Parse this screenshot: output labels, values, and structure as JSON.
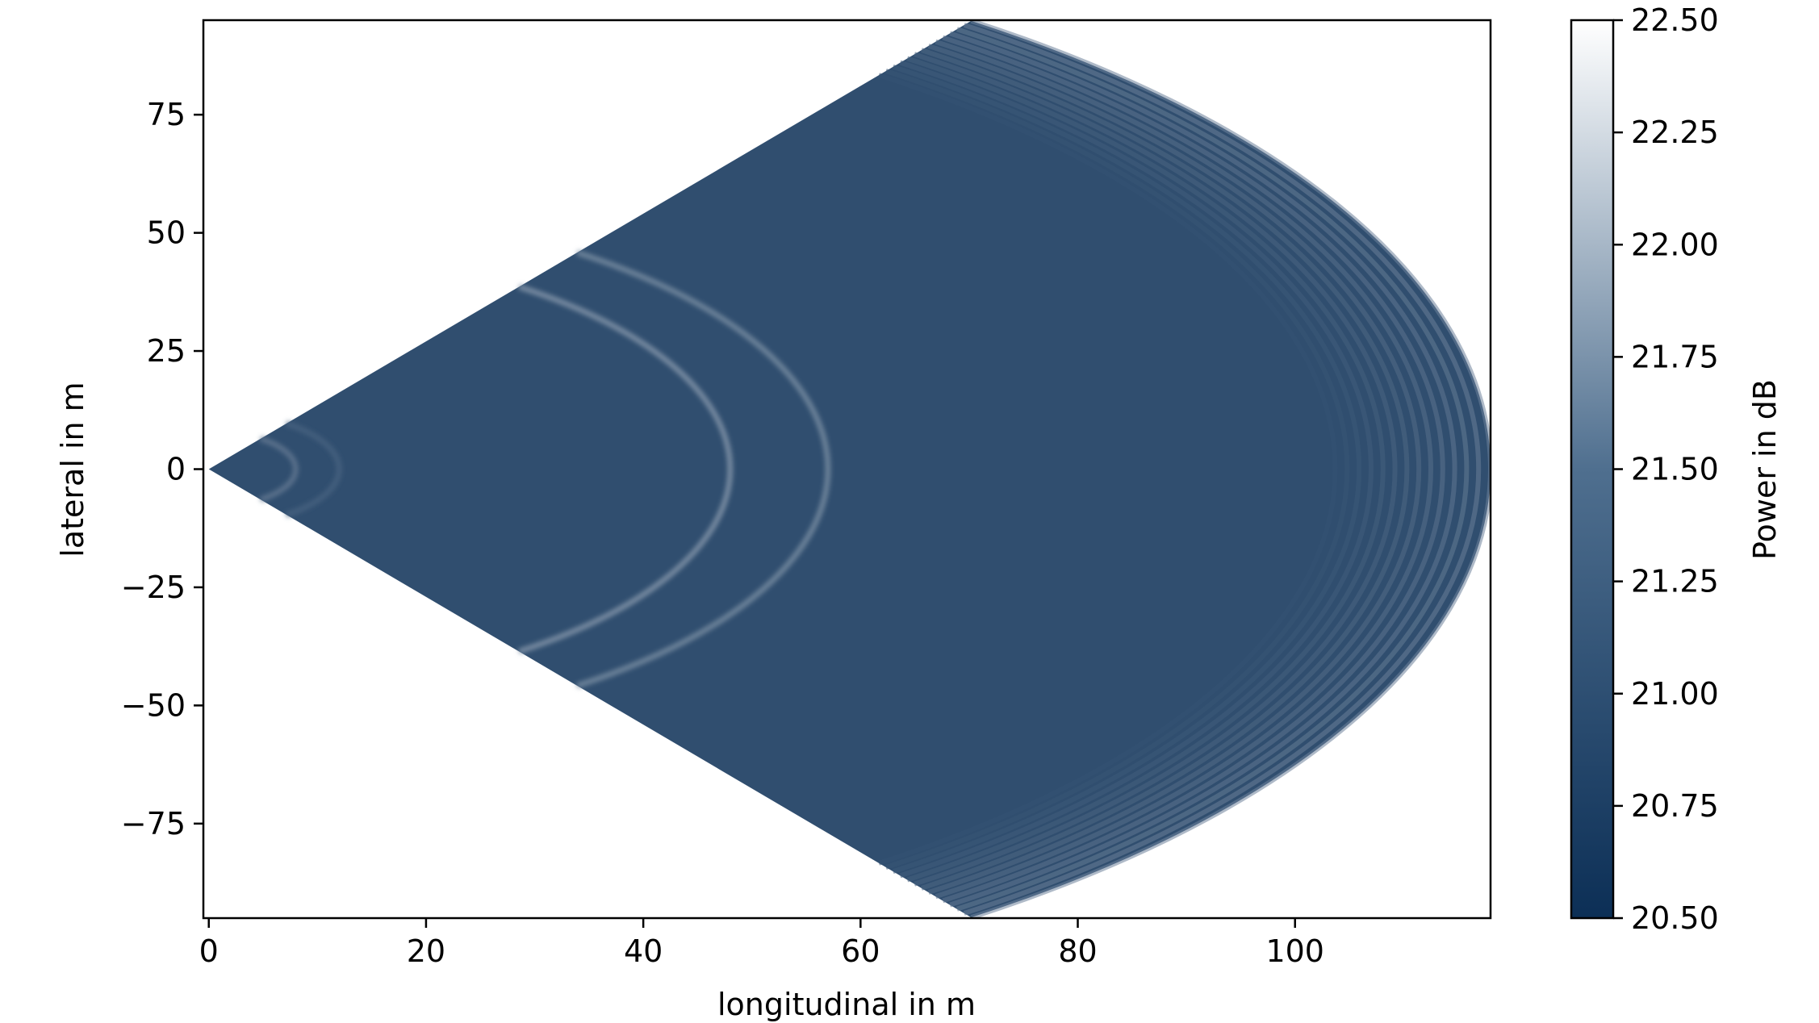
{
  "chart_data": {
    "type": "heatmap",
    "subtype": "radar-sector-polar-map",
    "title": "",
    "xlabel": "longitudinal in m",
    "ylabel": "lateral in m",
    "xlim": [
      -0.5,
      118
    ],
    "ylim": [
      -95,
      95
    ],
    "xticks": [
      0,
      20,
      40,
      60,
      80,
      100
    ],
    "xtick_labels": [
      "0",
      "20",
      "40",
      "60",
      "80",
      "100"
    ],
    "yticks": [
      75,
      50,
      25,
      0,
      -25,
      -50,
      -75
    ],
    "ytick_labels": [
      "75",
      "50",
      "25",
      "0",
      "−25",
      "−50",
      "−75"
    ],
    "sector": {
      "apex": [
        0,
        0
      ],
      "max_range_m": 118,
      "half_angle_deg": 53.5
    },
    "arcs": [
      {
        "range_m": 8,
        "intensity_db": 21.2
      },
      {
        "range_m": 12,
        "intensity_db": 21.0
      },
      {
        "range_m": 48,
        "intensity_db": 21.5
      },
      {
        "range_m": 57,
        "intensity_db": 21.4
      }
    ],
    "background_db": 20.8,
    "edge_db": 21.3,
    "grid": false,
    "legend": "none",
    "colorbar": {
      "label": "Power in dB",
      "min": 20.5,
      "max": 22.5,
      "ticks": [
        22.5,
        22.25,
        22.0,
        21.75,
        21.5,
        21.25,
        21.0,
        20.75,
        20.5
      ],
      "tick_labels": [
        "22.50",
        "22.25",
        "22.00",
        "21.75",
        "21.50",
        "21.25",
        "21.00",
        "20.75",
        "20.50"
      ],
      "color_low": "#0c2f56",
      "color_high": "#ffffff"
    }
  }
}
